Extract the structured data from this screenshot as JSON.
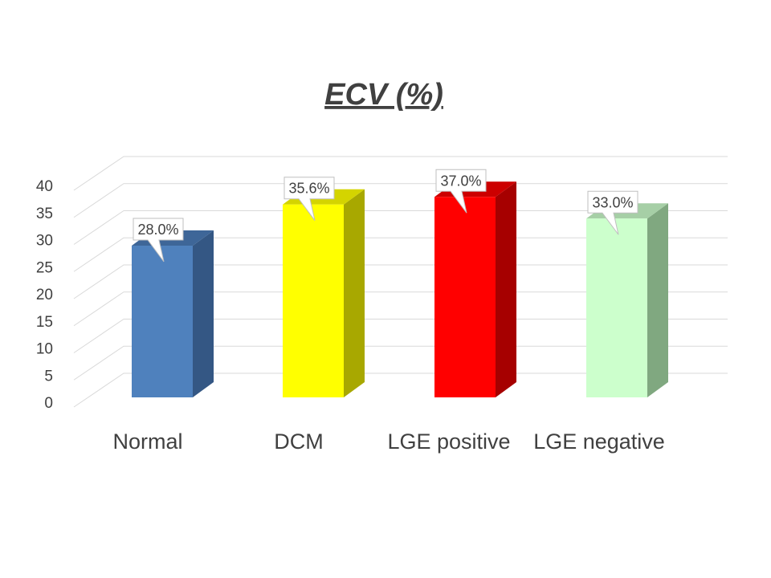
{
  "chart_data": {
    "type": "bar",
    "style": "3d-column",
    "title": "ECV (%)",
    "categories": [
      "Normal",
      "DCM",
      "LGE positive",
      "LGE negative"
    ],
    "values": [
      28.0,
      35.6,
      37.0,
      33.0
    ],
    "data_labels": [
      "28.0%",
      "35.6%",
      "37.0%",
      "33.0%"
    ],
    "colors": [
      "#4f81bd",
      "#ffff00",
      "#ff0000",
      "#ccffcc"
    ],
    "side_colors": [
      "#345784",
      "#a8a800",
      "#a60000",
      "#80a880"
    ],
    "top_colors": [
      "#3e6698",
      "#d4d400",
      "#cc0000",
      "#a6cfa6"
    ],
    "yticks": [
      "0",
      "5",
      "10",
      "15",
      "20",
      "25",
      "30",
      "35",
      "40"
    ],
    "ylim": [
      0,
      40
    ],
    "grid": true,
    "legend": "none",
    "xlabel": "",
    "ylabel": ""
  }
}
